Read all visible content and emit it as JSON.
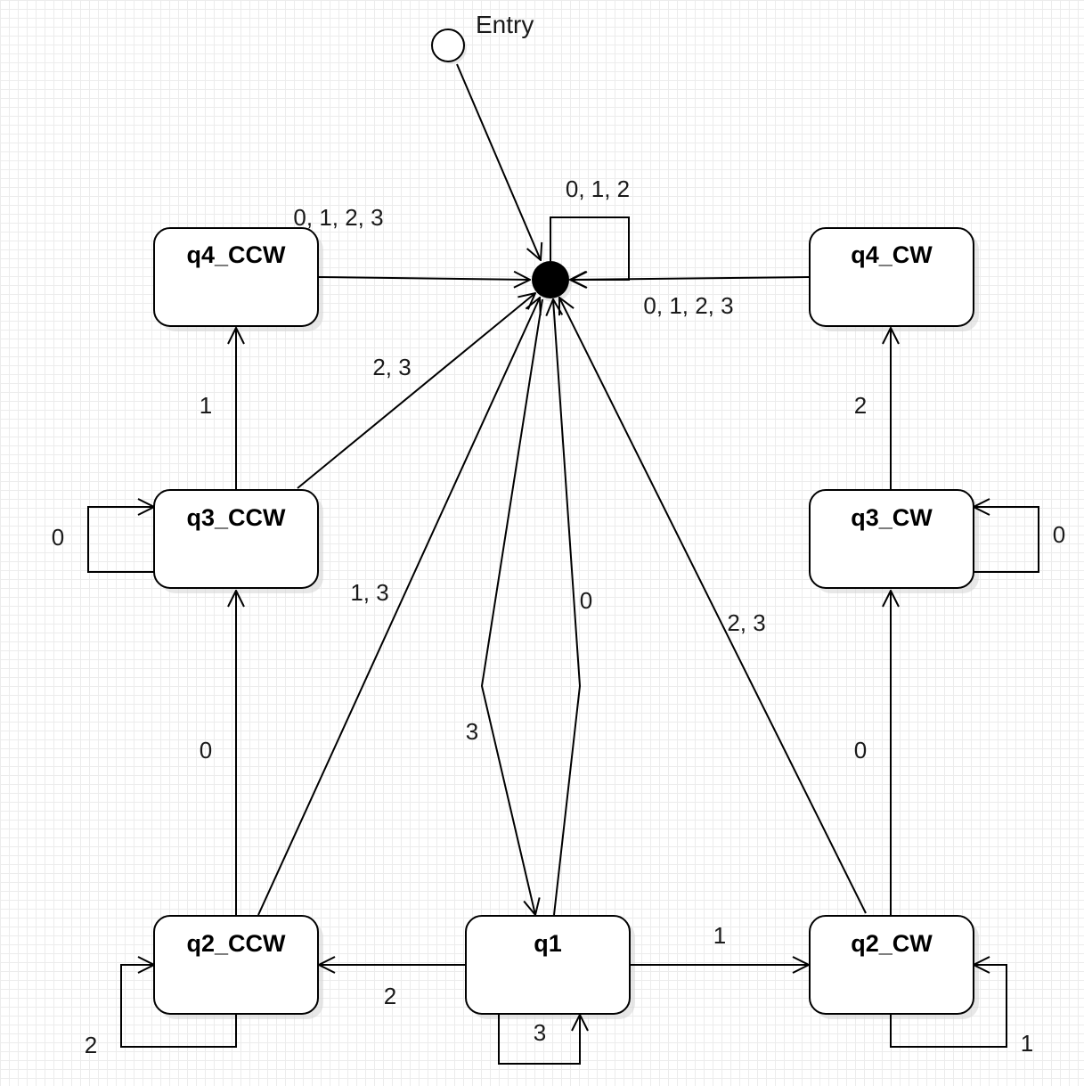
{
  "entry": {
    "label": "Entry"
  },
  "states": {
    "q4_ccw": "q4_CCW",
    "q4_cw": "q4_CW",
    "q3_ccw": "q3_CCW",
    "q3_cw": "q3_CW",
    "q2_ccw": "q2_CCW",
    "q1": "q1",
    "q2_cw": "q2_CW"
  },
  "transitions": {
    "final_self": "0, 1, 2",
    "q4ccw_to_final": "0, 1, 2, 3",
    "q4cw_to_final": "0, 1, 2, 3",
    "q3ccw_to_final": "2, 3",
    "q3ccw_to_q4ccw": "1",
    "q3ccw_self": "0",
    "q2ccw_to_final": "1, 3",
    "q2ccw_to_q3ccw": "0",
    "q2ccw_self": "2",
    "final_to_q1": "3",
    "q1_to_final": "0",
    "q1_to_q2ccw": "2",
    "q1_self": "3",
    "q1_to_q2cw": "1",
    "q2cw_to_final": "2, 3",
    "q2cw_to_q3cw": "0",
    "q2cw_self": "1",
    "q3cw_to_q4cw": "2",
    "q3cw_self": "0"
  }
}
